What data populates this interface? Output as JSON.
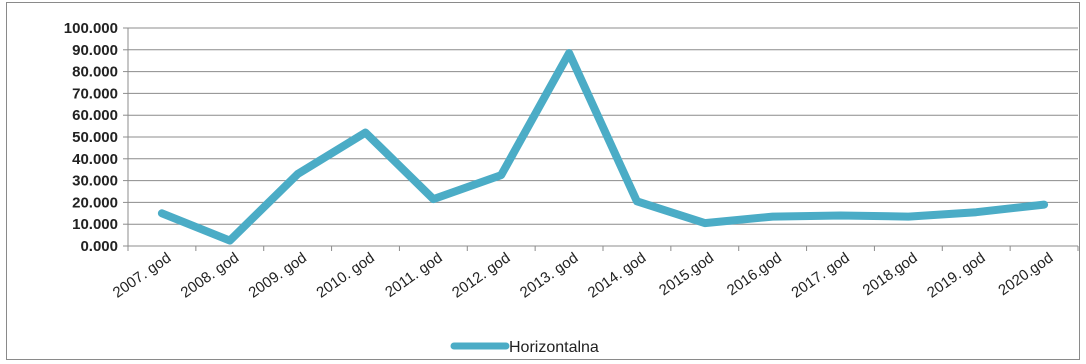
{
  "chart_data": {
    "type": "line",
    "categories": [
      "2007. god",
      "2008. god",
      "2009. god",
      "2010. god",
      "2011. god",
      "2012. god",
      "2013. god",
      "2014. god",
      "2015.god",
      "2016.god",
      "2017. god",
      "2018.god",
      "2019. god",
      "2020.god"
    ],
    "series": [
      {
        "name": "Horizontalna",
        "color": "#4bacc6",
        "values": [
          15000,
          2500,
          33000,
          52000,
          21500,
          32500,
          88500,
          20500,
          10500,
          13500,
          14000,
          13500,
          15500,
          19000
        ]
      }
    ],
    "ylim": [
      0,
      100000
    ],
    "yticks": [
      "0.000",
      "10.000",
      "20.000",
      "30.000",
      "40.000",
      "50.000",
      "60.000",
      "70.000",
      "80.000",
      "90.000",
      "100.000"
    ],
    "grid": true,
    "legend": "bottom-center",
    "title": "",
    "xlabel": "",
    "ylabel": ""
  }
}
